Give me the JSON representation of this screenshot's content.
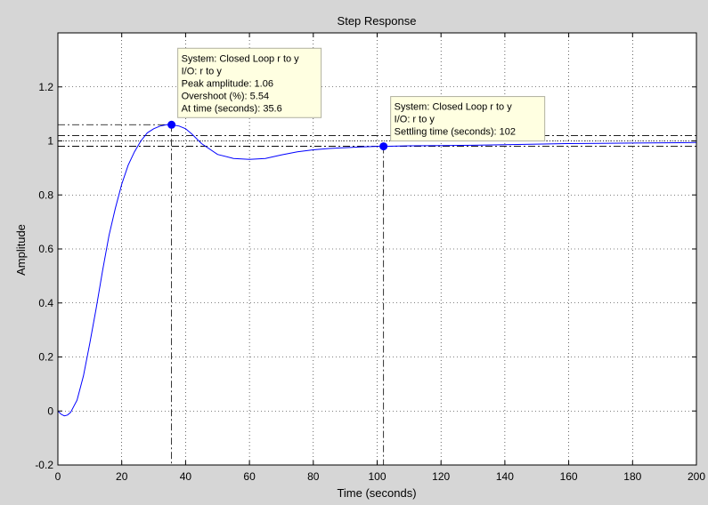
{
  "chart_data": {
    "type": "line",
    "title": "Step Response",
    "xlabel": "Time (seconds)",
    "ylabel": "Amplitude",
    "xlim": [
      0,
      200
    ],
    "ylim": [
      -0.2,
      1.4
    ],
    "x_ticks": [
      0,
      20,
      40,
      60,
      80,
      100,
      120,
      140,
      160,
      180,
      200
    ],
    "y_ticks": [
      -0.2,
      0,
      0.2,
      0.4,
      0.6,
      0.8,
      1,
      1.2
    ],
    "x_tick_labels": [
      "0",
      "20",
      "40",
      "60",
      "80",
      "100",
      "120",
      "140",
      "160",
      "180",
      "200"
    ],
    "y_tick_labels": [
      "-0.2",
      "0",
      "0.2",
      "0.4",
      "0.6",
      "0.8",
      "1",
      "1.2"
    ],
    "grid": true,
    "series": [
      {
        "color": "#0000ff",
        "x": [
          0,
          1,
          2,
          3,
          4,
          6,
          8,
          10,
          12,
          14,
          16,
          18,
          20,
          22,
          24,
          26,
          28,
          30,
          32,
          34,
          35.6,
          38,
          40,
          42,
          45,
          50,
          55,
          60,
          65,
          70,
          75,
          80,
          85,
          90,
          95,
          100,
          102,
          110,
          120,
          130,
          140,
          150,
          160,
          170,
          180,
          190,
          200
        ],
        "y": [
          0,
          -0.012,
          -0.018,
          -0.015,
          -0.005,
          0.04,
          0.13,
          0.25,
          0.38,
          0.52,
          0.65,
          0.75,
          0.84,
          0.91,
          0.96,
          1.0,
          1.03,
          1.045,
          1.055,
          1.06,
          1.06,
          1.055,
          1.045,
          1.025,
          0.99,
          0.95,
          0.935,
          0.932,
          0.935,
          0.948,
          0.96,
          0.967,
          0.972,
          0.975,
          0.978,
          0.98,
          0.98,
          0.982,
          0.983,
          0.984,
          0.986,
          0.988,
          0.99,
          0.991,
          0.992,
          0.993,
          0.994
        ]
      }
    ],
    "reference_lines": {
      "final_value": 1,
      "settling_band": [
        0.98,
        1.02
      ]
    },
    "markers": [
      {
        "x": 35.6,
        "y": 1.06,
        "color": "#0000ff",
        "tooltip": [
          "System: Closed Loop r to y",
          "I/O: r to y",
          "Peak amplitude: 1.06",
          "Overshoot (%): 5.54",
          "At time (seconds): 35.6"
        ]
      },
      {
        "x": 102,
        "y": 0.98,
        "color": "#0000ff",
        "tooltip": [
          "System: Closed Loop r to y",
          "I/O: r to y",
          "Settling time (seconds): 102"
        ]
      }
    ]
  }
}
